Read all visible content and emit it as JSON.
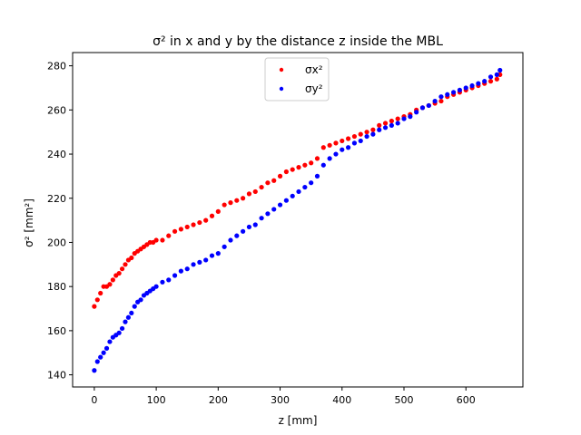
{
  "chart_data": {
    "type": "scatter",
    "title": "σ² in x and y by the distance z inside the MBL",
    "xlabel": "z [mm]",
    "ylabel": "σ² [mm²]",
    "xlim": [
      -35,
      692
    ],
    "ylim": [
      134.5,
      286
    ],
    "xticks": [
      0,
      100,
      200,
      300,
      400,
      500,
      600
    ],
    "yticks": [
      140,
      160,
      180,
      200,
      220,
      240,
      260,
      280
    ],
    "grid": false,
    "legend_position": "upper center",
    "series": [
      {
        "name": "σx²",
        "color": "#ff0000",
        "points": [
          [
            0,
            171
          ],
          [
            5,
            174
          ],
          [
            10,
            177
          ],
          [
            15,
            180
          ],
          [
            20,
            180
          ],
          [
            25,
            181
          ],
          [
            30,
            183
          ],
          [
            35,
            185
          ],
          [
            40,
            186
          ],
          [
            45,
            188
          ],
          [
            50,
            190
          ],
          [
            55,
            192
          ],
          [
            60,
            193
          ],
          [
            65,
            195
          ],
          [
            70,
            196
          ],
          [
            75,
            197
          ],
          [
            80,
            198
          ],
          [
            85,
            199
          ],
          [
            90,
            200
          ],
          [
            95,
            200
          ],
          [
            100,
            201
          ],
          [
            110,
            201
          ],
          [
            120,
            203
          ],
          [
            130,
            205
          ],
          [
            140,
            206
          ],
          [
            150,
            207
          ],
          [
            160,
            208
          ],
          [
            170,
            209
          ],
          [
            180,
            210
          ],
          [
            190,
            212
          ],
          [
            200,
            214
          ],
          [
            210,
            217
          ],
          [
            220,
            218
          ],
          [
            230,
            219
          ],
          [
            240,
            220
          ],
          [
            250,
            222
          ],
          [
            260,
            223
          ],
          [
            270,
            225
          ],
          [
            280,
            227
          ],
          [
            290,
            228
          ],
          [
            300,
            230
          ],
          [
            310,
            232
          ],
          [
            320,
            233
          ],
          [
            330,
            234
          ],
          [
            340,
            235
          ],
          [
            350,
            236
          ],
          [
            360,
            238
          ],
          [
            370,
            243
          ],
          [
            380,
            244
          ],
          [
            390,
            245
          ],
          [
            400,
            246
          ],
          [
            410,
            247
          ],
          [
            420,
            248
          ],
          [
            430,
            249
          ],
          [
            440,
            250
          ],
          [
            450,
            251
          ],
          [
            460,
            253
          ],
          [
            470,
            254
          ],
          [
            480,
            255
          ],
          [
            490,
            256
          ],
          [
            500,
            257
          ],
          [
            510,
            258
          ],
          [
            520,
            260
          ],
          [
            530,
            261
          ],
          [
            540,
            262
          ],
          [
            550,
            263
          ],
          [
            560,
            264
          ],
          [
            570,
            266
          ],
          [
            580,
            267
          ],
          [
            590,
            268
          ],
          [
            600,
            269
          ],
          [
            610,
            270
          ],
          [
            620,
            271
          ],
          [
            630,
            272
          ],
          [
            640,
            273
          ],
          [
            650,
            274
          ],
          [
            655,
            276
          ]
        ]
      },
      {
        "name": "σy²",
        "color": "#0000ff",
        "points": [
          [
            0,
            142
          ],
          [
            5,
            146
          ],
          [
            10,
            148
          ],
          [
            15,
            150
          ],
          [
            20,
            152
          ],
          [
            25,
            155
          ],
          [
            30,
            157
          ],
          [
            35,
            158
          ],
          [
            40,
            159
          ],
          [
            45,
            161
          ],
          [
            50,
            164
          ],
          [
            55,
            166
          ],
          [
            60,
            168
          ],
          [
            65,
            171
          ],
          [
            70,
            173
          ],
          [
            75,
            174
          ],
          [
            80,
            176
          ],
          [
            85,
            177
          ],
          [
            90,
            178
          ],
          [
            95,
            179
          ],
          [
            100,
            180
          ],
          [
            110,
            182
          ],
          [
            120,
            183
          ],
          [
            130,
            185
          ],
          [
            140,
            187
          ],
          [
            150,
            188
          ],
          [
            160,
            190
          ],
          [
            170,
            191
          ],
          [
            180,
            192
          ],
          [
            190,
            194
          ],
          [
            200,
            195
          ],
          [
            210,
            198
          ],
          [
            220,
            201
          ],
          [
            230,
            203
          ],
          [
            240,
            205
          ],
          [
            250,
            207
          ],
          [
            260,
            208
          ],
          [
            270,
            211
          ],
          [
            280,
            213
          ],
          [
            290,
            215
          ],
          [
            300,
            217
          ],
          [
            310,
            219
          ],
          [
            320,
            221
          ],
          [
            330,
            223
          ],
          [
            340,
            225
          ],
          [
            350,
            227
          ],
          [
            360,
            230
          ],
          [
            370,
            235
          ],
          [
            380,
            238
          ],
          [
            390,
            240
          ],
          [
            400,
            242
          ],
          [
            410,
            243
          ],
          [
            420,
            245
          ],
          [
            430,
            246
          ],
          [
            440,
            248
          ],
          [
            450,
            249
          ],
          [
            460,
            251
          ],
          [
            470,
            252
          ],
          [
            480,
            253
          ],
          [
            490,
            254
          ],
          [
            500,
            256
          ],
          [
            510,
            257
          ],
          [
            520,
            259
          ],
          [
            530,
            261
          ],
          [
            540,
            262
          ],
          [
            550,
            264
          ],
          [
            560,
            266
          ],
          [
            570,
            267
          ],
          [
            580,
            268
          ],
          [
            590,
            269
          ],
          [
            600,
            270
          ],
          [
            610,
            271
          ],
          [
            620,
            272
          ],
          [
            630,
            273
          ],
          [
            640,
            275
          ],
          [
            650,
            276
          ],
          [
            655,
            278
          ]
        ]
      }
    ]
  }
}
